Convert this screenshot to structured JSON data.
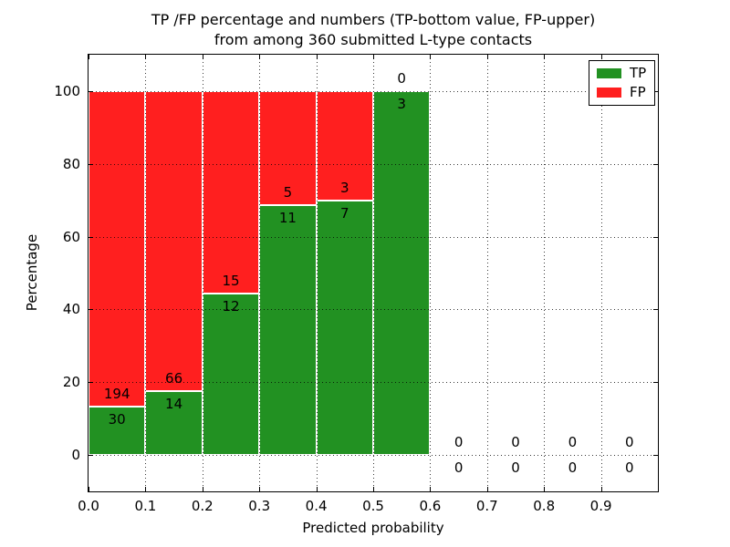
{
  "chart_data": {
    "type": "bar",
    "stacking": "percentage",
    "title_lines": [
      "TP /FP percentage and numbers (TP-bottom value, FP-upper)",
      "from among 360 submitted L-type contacts"
    ],
    "xlabel": "Predicted probability",
    "ylabel": "Percentage",
    "xlim": [
      0.0,
      1.0
    ],
    "ylim": [
      -10,
      110
    ],
    "x_tick_values": [
      0.0,
      0.1,
      0.2,
      0.3,
      0.4,
      0.5,
      0.6,
      0.7,
      0.8,
      0.9
    ],
    "x_tick_labels": [
      "0.0",
      "0.1",
      "0.2",
      "0.3",
      "0.4",
      "0.5",
      "0.6",
      "0.7",
      "0.8",
      "0.9"
    ],
    "y_tick_values": [
      0,
      20,
      40,
      60,
      80,
      100
    ],
    "y_tick_labels": [
      "0",
      "20",
      "40",
      "60",
      "80",
      "100"
    ],
    "grid": "dotted",
    "bin_width": 0.1,
    "total_contacts": 360,
    "bins": [
      {
        "x_start": 0.0,
        "tp": 30,
        "fp": 194
      },
      {
        "x_start": 0.1,
        "tp": 14,
        "fp": 66
      },
      {
        "x_start": 0.2,
        "tp": 12,
        "fp": 15
      },
      {
        "x_start": 0.3,
        "tp": 11,
        "fp": 5
      },
      {
        "x_start": 0.4,
        "tp": 7,
        "fp": 3
      },
      {
        "x_start": 0.5,
        "tp": 3,
        "fp": 0
      },
      {
        "x_start": 0.6,
        "tp": 0,
        "fp": 0
      },
      {
        "x_start": 0.7,
        "tp": 0,
        "fp": 0
      },
      {
        "x_start": 0.8,
        "tp": 0,
        "fp": 0
      },
      {
        "x_start": 0.9,
        "tp": 0,
        "fp": 0
      }
    ],
    "legend": {
      "position": "upper right",
      "entries": [
        {
          "label": "TP",
          "color": "#229122"
        },
        {
          "label": "FP",
          "color": "#ff1f1f"
        }
      ]
    },
    "colors": {
      "tp": "#229122",
      "fp": "#ff1f1f",
      "bar_edge": "#ffffff",
      "grid": "#000000",
      "axis": "#000000",
      "background": "#ffffff"
    }
  }
}
